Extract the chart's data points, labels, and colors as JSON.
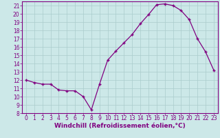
{
  "x": [
    0,
    1,
    2,
    3,
    4,
    5,
    6,
    7,
    8,
    9,
    10,
    11,
    12,
    13,
    14,
    15,
    16,
    17,
    18,
    19,
    20,
    21,
    22,
    23
  ],
  "y": [
    12.0,
    11.7,
    11.5,
    11.5,
    10.8,
    10.7,
    10.7,
    10.0,
    8.4,
    11.5,
    14.4,
    15.5,
    16.5,
    17.5,
    18.8,
    19.9,
    21.1,
    21.2,
    21.0,
    20.4,
    19.3,
    17.0,
    15.4,
    13.2
  ],
  "line_color": "#800080",
  "marker": "+",
  "marker_size": 3.5,
  "marker_linewidth": 1.0,
  "xlim": [
    -0.5,
    23.5
  ],
  "ylim": [
    8,
    21.5
  ],
  "yticks": [
    8,
    9,
    10,
    11,
    12,
    13,
    14,
    15,
    16,
    17,
    18,
    19,
    20,
    21
  ],
  "xticks": [
    0,
    1,
    2,
    3,
    4,
    5,
    6,
    7,
    8,
    9,
    10,
    11,
    12,
    13,
    14,
    15,
    16,
    17,
    18,
    19,
    20,
    21,
    22,
    23
  ],
  "xlabel": "Windchill (Refroidissement éolien,°C)",
  "background_color": "#cce8e8",
  "grid_color": "#aacccc",
  "axis_label_color": "#800080",
  "tick_label_color": "#800080",
  "spine_color": "#800080",
  "xlabel_fontsize": 6.5,
  "tick_fontsize": 5.5,
  "linewidth": 0.9
}
